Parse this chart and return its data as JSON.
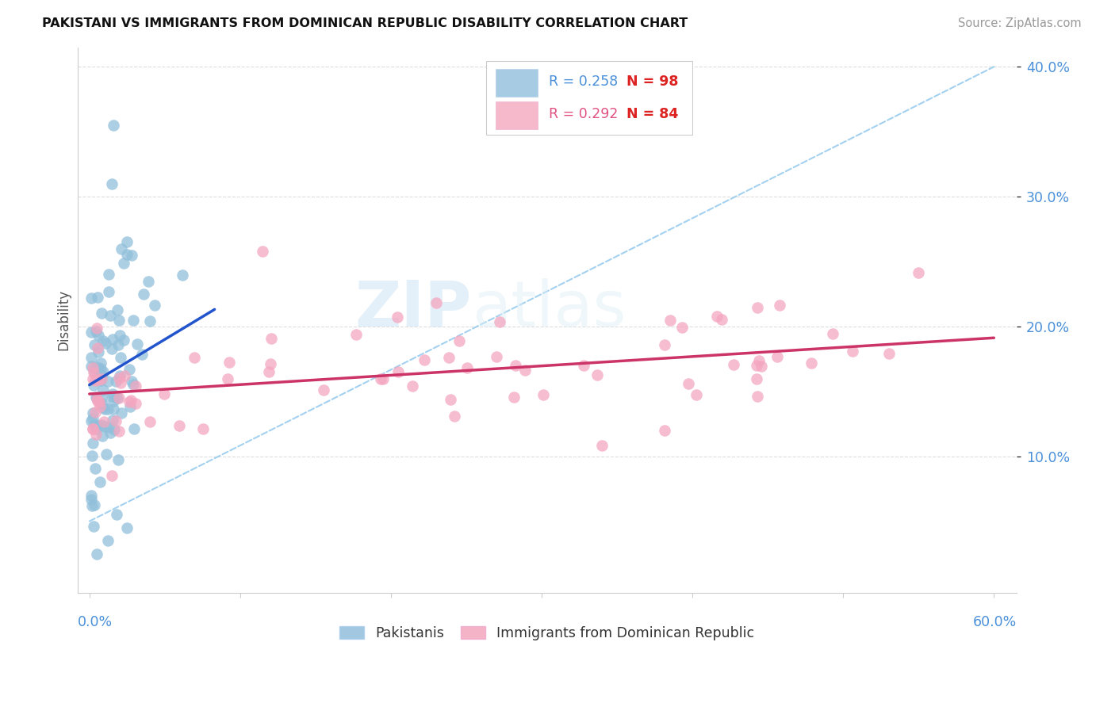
{
  "title": "PAKISTANI VS IMMIGRANTS FROM DOMINICAN REPUBLIC DISABILITY CORRELATION CHART",
  "source": "Source: ZipAtlas.com",
  "ylabel": "Disability",
  "color_blue": "#91bfdb",
  "color_pink": "#f4a6bf",
  "color_blue_text": "#4a90d9",
  "color_pink_text": "#e05080",
  "color_trendline_blue": "#2255cc",
  "color_trendline_pink": "#cc3366",
  "color_dashed": "#99ccee",
  "watermark_zip": "ZIP",
  "watermark_atlas": "atlas",
  "legend_r1": "R = 0.258",
  "legend_n1": "N = 98",
  "legend_r2": "R = 0.292",
  "legend_n2": "N = 84"
}
